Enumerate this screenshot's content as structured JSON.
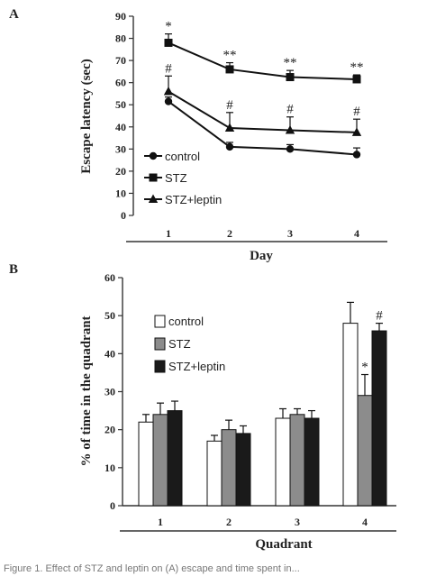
{
  "caption": "Figure 1. Effect of STZ and leptin on (A) escape and time spent in...",
  "chart_data": [
    {
      "panel": "A",
      "type": "line",
      "ylabel": "Escape latency (sec)",
      "xlabel": "Day",
      "categories": [
        "1",
        "2",
        "3",
        "4"
      ],
      "ylim": [
        0,
        90
      ],
      "yticks": [
        0,
        10,
        20,
        30,
        40,
        50,
        60,
        70,
        80,
        90
      ],
      "legend_position": "bottom-left",
      "series": [
        {
          "name": "control",
          "marker": "circle",
          "values": [
            51.5,
            31,
            30,
            27.5
          ],
          "errors": [
            2,
            2,
            2,
            3
          ],
          "annotations": [
            "",
            "",
            "",
            ""
          ]
        },
        {
          "name": "STZ",
          "marker": "square",
          "values": [
            78,
            66,
            62.5,
            61.5
          ],
          "errors": [
            4,
            3,
            3,
            2
          ],
          "annotations": [
            "*",
            "**",
            "**",
            "**"
          ]
        },
        {
          "name": "STZ+leptin",
          "marker": "triangle",
          "values": [
            56,
            39.5,
            38.5,
            37.5
          ],
          "errors": [
            7,
            7,
            6,
            6
          ],
          "annotations": [
            "#",
            "#",
            "#",
            "#"
          ]
        }
      ]
    },
    {
      "panel": "B",
      "type": "bar",
      "ylabel": "% of time in the quadrant",
      "xlabel": "Quadrant",
      "categories": [
        "1",
        "2",
        "3",
        "4"
      ],
      "ylim": [
        0,
        60
      ],
      "yticks": [
        0,
        10,
        20,
        30,
        40,
        50,
        60
      ],
      "legend_position": "top-left",
      "series": [
        {
          "name": "control",
          "fill": "#ffffff",
          "values": [
            22,
            17,
            23,
            48
          ],
          "errors": [
            2,
            1.5,
            2.5,
            5.5
          ],
          "annotations": [
            "",
            "",
            "",
            ""
          ]
        },
        {
          "name": "STZ",
          "fill": "#8c8c8c",
          "values": [
            24,
            20,
            24,
            29
          ],
          "errors": [
            3,
            2.5,
            1.5,
            5.5
          ],
          "annotations": [
            "",
            "",
            "",
            "*"
          ]
        },
        {
          "name": "STZ+leptin",
          "fill": "#1a1a1a",
          "values": [
            25,
            19,
            23,
            46
          ],
          "errors": [
            2.5,
            2,
            2,
            2
          ],
          "annotations": [
            "",
            "",
            "",
            "#"
          ]
        }
      ]
    }
  ]
}
